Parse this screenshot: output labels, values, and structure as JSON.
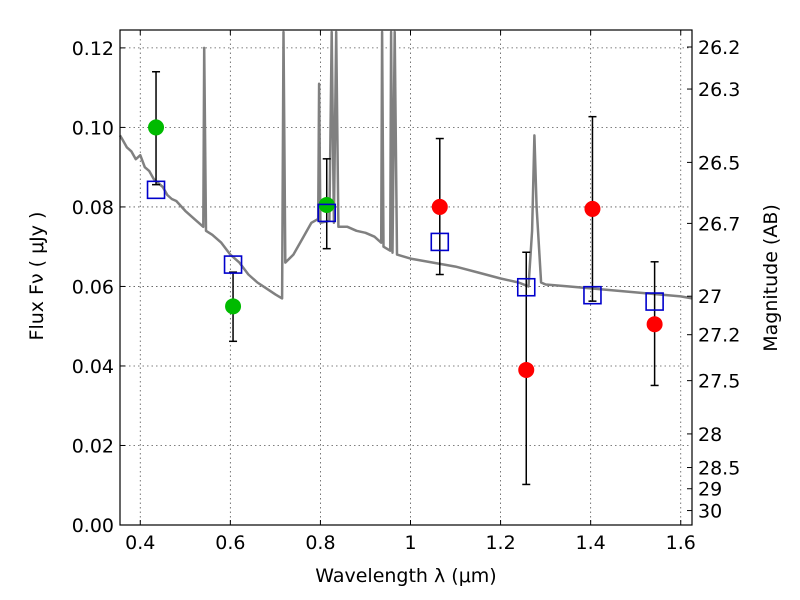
{
  "chart_data": {
    "type": "scatter",
    "xlabel": "Wavelength  λ (μm)",
    "ylabel": "Flux  Fν  ( μJy )",
    "y2label": "Magnitude (AB)",
    "xlim": [
      0.355,
      1.625
    ],
    "ylim": [
      0.0,
      0.1245
    ],
    "grid": true,
    "x_ticks": [
      "0.4",
      "0.6",
      "0.8",
      "1",
      "1.2",
      "1.4",
      "1.6"
    ],
    "x_tick_values": [
      0.4,
      0.6,
      0.8,
      1.0,
      1.2,
      1.4,
      1.6
    ],
    "y_ticks": [
      "0.00",
      "0.02",
      "0.04",
      "0.06",
      "0.08",
      "0.10",
      "0.12"
    ],
    "y_tick_values": [
      0.0,
      0.02,
      0.04,
      0.06,
      0.08,
      0.1,
      0.12
    ],
    "mag_ticks": [
      {
        "label": "26.2",
        "mag": 26.2
      },
      {
        "label": "26.3",
        "mag": 26.3
      },
      {
        "label": "26.5",
        "mag": 26.5
      },
      {
        "label": "26.7",
        "mag": 26.7
      },
      {
        "label": "27",
        "mag": 27.0
      },
      {
        "label": "27.2",
        "mag": 27.2
      },
      {
        "label": "27.5",
        "mag": 27.5
      },
      {
        "label": "28",
        "mag": 28.0
      },
      {
        "label": "28.5",
        "mag": 28.5
      },
      {
        "label": "29",
        "mag": 29.0
      },
      {
        "label": "30",
        "mag": 30.0
      }
    ],
    "series": [
      {
        "marker": "filled-circle",
        "color": "#00bb00",
        "points": [
          {
            "x": 0.435,
            "y": 0.1,
            "err": [
              0.0856,
              0.114
            ]
          },
          {
            "x": 0.606,
            "y": 0.055,
            "err": [
              0.0462,
              0.0636
            ]
          },
          {
            "x": 0.814,
            "y": 0.0805,
            "err": [
              0.0695,
              0.0921
            ]
          }
        ]
      },
      {
        "marker": "filled-circle",
        "color": "#ff0000",
        "points": [
          {
            "x": 1.065,
            "y": 0.08,
            "err": [
              0.063,
              0.0972
            ]
          },
          {
            "x": 1.257,
            "y": 0.039,
            "err": [
              0.0102,
              0.0686
            ]
          },
          {
            "x": 1.404,
            "y": 0.0795,
            "err": [
              0.0563,
              0.1027
            ]
          },
          {
            "x": 1.542,
            "y": 0.0505,
            "err": [
              0.0351,
              0.0662
            ]
          }
        ]
      },
      {
        "marker": "open-square",
        "color": "#0000cc",
        "points": [
          {
            "x": 0.435,
            "y": 0.0843
          },
          {
            "x": 0.606,
            "y": 0.0655
          },
          {
            "x": 0.814,
            "y": 0.0785
          },
          {
            "x": 1.065,
            "y": 0.0712
          },
          {
            "x": 1.257,
            "y": 0.0598
          },
          {
            "x": 1.404,
            "y": 0.0578
          },
          {
            "x": 1.542,
            "y": 0.0562
          }
        ]
      },
      {
        "type": "line",
        "color": "#808080",
        "points": [
          [
            0.355,
            0.098
          ],
          [
            0.36,
            0.097
          ],
          [
            0.37,
            0.095
          ],
          [
            0.38,
            0.094
          ],
          [
            0.39,
            0.092
          ],
          [
            0.4,
            0.093
          ],
          [
            0.41,
            0.09
          ],
          [
            0.42,
            0.089
          ],
          [
            0.43,
            0.087
          ],
          [
            0.44,
            0.086
          ],
          [
            0.45,
            0.085
          ],
          [
            0.46,
            0.083
          ],
          [
            0.47,
            0.082
          ],
          [
            0.48,
            0.0815
          ],
          [
            0.5,
            0.079
          ],
          [
            0.52,
            0.077
          ],
          [
            0.54,
            0.075
          ],
          [
            0.542,
            0.12
          ],
          [
            0.546,
            0.074
          ],
          [
            0.56,
            0.073
          ],
          [
            0.58,
            0.071
          ],
          [
            0.6,
            0.068
          ],
          [
            0.62,
            0.066
          ],
          [
            0.64,
            0.063
          ],
          [
            0.66,
            0.061
          ],
          [
            0.68,
            0.0595
          ],
          [
            0.7,
            0.058
          ],
          [
            0.715,
            0.057
          ],
          [
            0.718,
            0.124
          ],
          [
            0.722,
            0.066
          ],
          [
            0.74,
            0.068
          ],
          [
            0.76,
            0.072
          ],
          [
            0.78,
            0.076
          ],
          [
            0.795,
            0.077
          ],
          [
            0.797,
            0.111
          ],
          [
            0.8,
            0.076
          ],
          [
            0.82,
            0.0765
          ],
          [
            0.825,
            0.124
          ],
          [
            0.83,
            0.076
          ],
          [
            0.835,
            0.124
          ],
          [
            0.84,
            0.075
          ],
          [
            0.86,
            0.075
          ],
          [
            0.88,
            0.074
          ],
          [
            0.9,
            0.0735
          ],
          [
            0.92,
            0.0725
          ],
          [
            0.935,
            0.071
          ],
          [
            0.937,
            0.124
          ],
          [
            0.94,
            0.07
          ],
          [
            0.955,
            0.069
          ],
          [
            0.957,
            0.124
          ],
          [
            0.96,
            0.0685
          ],
          [
            0.965,
            0.124
          ],
          [
            0.97,
            0.068
          ],
          [
            1.0,
            0.067
          ],
          [
            1.05,
            0.066
          ],
          [
            1.1,
            0.065
          ],
          [
            1.15,
            0.0635
          ],
          [
            1.2,
            0.062
          ],
          [
            1.24,
            0.061
          ],
          [
            1.262,
            0.06
          ],
          [
            1.27,
            0.074
          ],
          [
            1.275,
            0.098
          ],
          [
            1.28,
            0.08
          ],
          [
            1.29,
            0.061
          ],
          [
            1.3,
            0.0605
          ],
          [
            1.35,
            0.06
          ],
          [
            1.4,
            0.0595
          ],
          [
            1.45,
            0.059
          ],
          [
            1.5,
            0.0585
          ],
          [
            1.55,
            0.058
          ],
          [
            1.6,
            0.0575
          ],
          [
            1.625,
            0.057
          ]
        ]
      }
    ]
  }
}
